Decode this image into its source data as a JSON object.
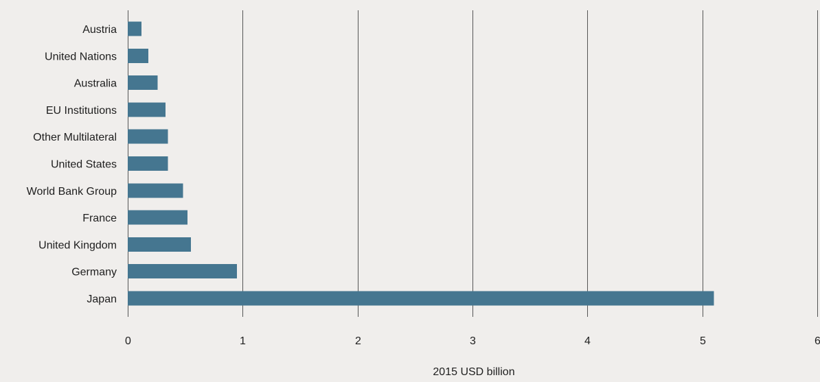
{
  "chart_data": {
    "type": "bar",
    "orientation": "horizontal",
    "categories": [
      "Austria",
      "United Nations",
      "Australia",
      "EU Institutions",
      "Other Multilateral",
      "United States",
      "World Bank Group",
      "France",
      "United Kingdom",
      "Germany",
      "Japan"
    ],
    "values": [
      0.12,
      0.18,
      0.26,
      0.33,
      0.35,
      0.35,
      0.48,
      0.52,
      0.55,
      0.95,
      5.1
    ],
    "title": "",
    "xlabel": "2015 USD billion",
    "ylabel": "",
    "xlim": [
      0,
      6
    ],
    "xticks": [
      "0",
      "1",
      "2",
      "3",
      "4",
      "5",
      "6"
    ],
    "grid": "vertical",
    "legend": "none",
    "colors": {
      "bar": "#457690",
      "background": "#f0eeec",
      "grid": "#555555"
    }
  }
}
